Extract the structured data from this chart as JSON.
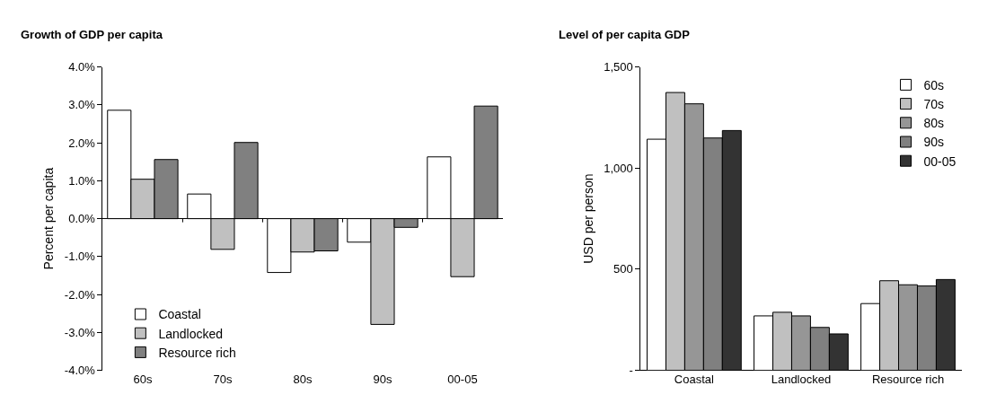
{
  "chart_data": [
    {
      "type": "bar",
      "title": "Growth of GDP per capita",
      "ylabel": "Percent per capita",
      "categories": [
        "60s",
        "70s",
        "80s",
        "90s",
        "00-05"
      ],
      "series": [
        {
          "name": "Coastal",
          "color": "#ffffff",
          "values": [
            2.86,
            0.65,
            -1.42,
            -0.62,
            1.63
          ]
        },
        {
          "name": "Landlocked",
          "color": "#c0c0c0",
          "values": [
            1.04,
            -0.81,
            -0.88,
            -2.79,
            -1.53
          ]
        },
        {
          "name": "Resource rich",
          "color": "#808080",
          "values": [
            1.56,
            2.01,
            -0.85,
            -0.23,
            2.97
          ]
        }
      ],
      "ylim": [
        -4,
        4
      ],
      "yticks": [
        {
          "value": -4,
          "label": "-4.0%"
        },
        {
          "value": -3,
          "label": "-3.0%"
        },
        {
          "value": -2,
          "label": "-2.0%"
        },
        {
          "value": -1,
          "label": "-1.0%"
        },
        {
          "value": 0,
          "label": "0.0%"
        },
        {
          "value": 1,
          "label": "1.0%"
        },
        {
          "value": 2,
          "label": "2.0%"
        },
        {
          "value": 3,
          "label": "3.0%"
        },
        {
          "value": 4,
          "label": "4.0%"
        }
      ],
      "legend": "bottom left"
    },
    {
      "type": "bar",
      "title": "Level of per capita GDP",
      "ylabel": "USD per person",
      "categories": [
        "Coastal",
        "Landlocked",
        "Resource rich"
      ],
      "series": [
        {
          "name": "60s",
          "color": "#ffffff",
          "values": [
            1143,
            269,
            330
          ]
        },
        {
          "name": "70s",
          "color": "#c0c0c0",
          "values": [
            1374,
            287,
            443
          ]
        },
        {
          "name": "80s",
          "color": "#969696",
          "values": [
            1318,
            269,
            423
          ]
        },
        {
          "name": "90s",
          "color": "#808080",
          "values": [
            1149,
            212,
            417
          ]
        },
        {
          "name": "00-05",
          "color": "#333333",
          "values": [
            1186,
            180,
            449
          ]
        }
      ],
      "ylim": [
        0,
        1500
      ],
      "yticks": [
        {
          "value": 0,
          "label": "-"
        },
        {
          "value": 500,
          "label": "500"
        },
        {
          "value": 1000,
          "label": "1,000"
        },
        {
          "value": 1500,
          "label": "1,500"
        }
      ],
      "legend": "top right"
    }
  ]
}
